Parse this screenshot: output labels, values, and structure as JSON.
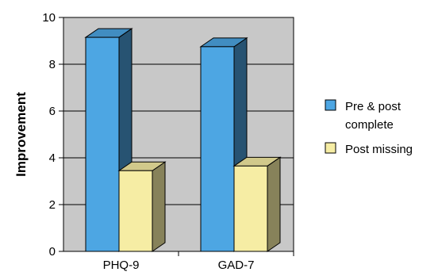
{
  "chart_data": {
    "type": "bar",
    "title": "",
    "xlabel": "",
    "ylabel": "Improvement",
    "categories": [
      "PHQ-9",
      "GAD-7"
    ],
    "series": [
      {
        "name": "Pre & post complete",
        "values": [
          9.15,
          8.75
        ],
        "color": "#4da6e3"
      },
      {
        "name": "Post missing",
        "values": [
          3.45,
          3.65
        ],
        "color": "#f6eda4"
      }
    ],
    "ylim": [
      0,
      10
    ],
    "yticks": [
      "0",
      "2",
      "4",
      "6",
      "8",
      "10"
    ],
    "ytick_values": [
      0,
      2,
      4,
      6,
      8,
      10
    ],
    "grid": true,
    "legend_position": "right",
    "legend_lines": [
      [
        "Pre & post",
        "complete"
      ],
      [
        "Post missing"
      ]
    ],
    "plot_background": "#c8c8c8",
    "depth_3d": true
  }
}
